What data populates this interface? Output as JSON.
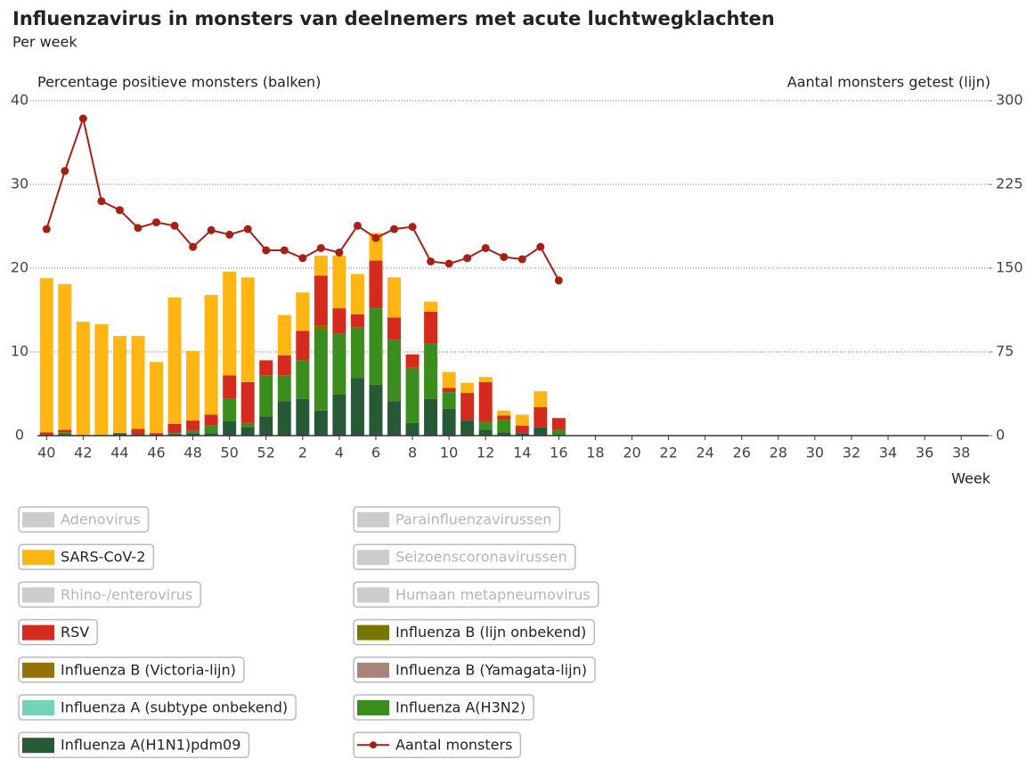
{
  "chart_data": {
    "type": "bar",
    "title": "Influenzavirus in monsters van deelnemers met acute luchtwegklachten",
    "subtitle": "Per week",
    "y_label": "Percentage positieve monsters (balken)",
    "y2_label": "Aantal monsters getest (lijn)",
    "x_label": "Week",
    "stacked": true,
    "grid": true,
    "ylim": [
      0,
      40
    ],
    "yticks": [
      0,
      10,
      20,
      30,
      40
    ],
    "y2lim": [
      0,
      300
    ],
    "y2ticks": [
      0,
      75,
      150,
      225,
      300
    ],
    "categories": [
      40,
      null,
      42,
      null,
      44,
      null,
      46,
      null,
      48,
      null,
      50,
      null,
      52,
      null,
      2,
      null,
      4,
      null,
      6,
      null,
      8,
      null,
      10,
      null,
      12,
      null,
      14,
      null,
      16,
      null,
      18,
      null,
      20,
      null,
      22,
      null,
      24,
      null,
      26,
      null,
      28,
      null,
      30,
      null,
      32,
      null,
      34,
      null,
      36,
      null,
      38,
      null
    ],
    "series": [
      {
        "name": "Influenza A(H1N1)pdm09",
        "color": "#275937",
        "values": [
          0,
          0.2,
          0,
          0,
          0.3,
          0.2,
          0,
          0.2,
          0.3,
          0.3,
          1.7,
          1.0,
          2.3,
          4.1,
          4.4,
          3.0,
          4.9,
          6.9,
          6.1,
          4.1,
          1.5,
          4.4,
          3.2,
          1.8,
          0.7,
          0.4,
          0.3,
          1.0,
          0,
          null,
          null,
          null,
          null,
          null,
          null,
          null,
          null,
          null,
          null,
          null,
          null,
          null,
          null,
          null,
          null,
          null,
          null,
          null,
          null,
          null,
          null,
          null
        ]
      },
      {
        "name": "Influenza A (subtype onbekend)",
        "color": "#76d2b6",
        "values": [
          0,
          0,
          0,
          0,
          0,
          0,
          0,
          0,
          0,
          0,
          0,
          0,
          0,
          0,
          0,
          0,
          0,
          0,
          0,
          0,
          0,
          0,
          0,
          0,
          0,
          0,
          0,
          0,
          0,
          null,
          null,
          null,
          null,
          null,
          null,
          null,
          null,
          null,
          null,
          null,
          null,
          null,
          null,
          null,
          null,
          null,
          null,
          null,
          null,
          null,
          null,
          null
        ]
      },
      {
        "name": "Influenza A(H3N2)",
        "color": "#3b8e1e",
        "values": [
          0,
          0.2,
          0,
          0,
          0,
          0,
          0,
          0.1,
          0.3,
          0.9,
          2.7,
          0.5,
          4.9,
          3.1,
          4.6,
          9.5,
          7.3,
          6.0,
          9.1,
          7.3,
          6.6,
          6.6,
          2.0,
          0,
          1.0,
          1.5,
          0,
          0,
          0.7,
          null,
          null,
          null,
          null,
          null,
          null,
          null,
          null,
          null,
          null,
          null,
          null,
          null,
          null,
          null,
          null,
          null,
          null,
          null,
          null,
          null,
          null,
          null
        ]
      },
      {
        "name": "Influenza B (Victoria-lijn)",
        "color": "#94710a",
        "values": [
          0,
          0,
          0,
          0,
          0,
          0,
          0,
          0,
          0,
          0,
          0,
          0,
          0,
          0,
          0,
          0,
          0,
          0,
          0,
          0,
          0,
          0,
          0,
          0,
          0,
          0,
          0,
          0,
          0,
          null,
          null,
          null,
          null,
          null,
          null,
          null,
          null,
          null,
          null,
          null,
          null,
          null,
          null,
          null,
          null,
          null,
          null,
          null,
          null,
          null,
          null,
          null
        ]
      },
      {
        "name": "Influenza B (Yamagata-lijn)",
        "color": "#a8847a",
        "values": [
          0,
          0,
          0,
          0,
          0,
          0,
          0,
          0,
          0,
          0,
          0,
          0,
          0,
          0,
          0,
          0,
          0,
          0,
          0,
          0,
          0,
          0,
          0,
          0,
          0,
          0,
          0,
          0,
          0,
          null,
          null,
          null,
          null,
          null,
          null,
          null,
          null,
          null,
          null,
          null,
          null,
          null,
          null,
          null,
          null,
          null,
          null,
          null,
          null,
          null,
          null,
          null
        ]
      },
      {
        "name": "Influenza B (lijn onbekend)",
        "color": "#777700",
        "values": [
          0,
          0,
          0,
          0,
          0,
          0,
          0,
          0,
          0,
          0,
          0,
          0,
          0,
          0,
          0,
          0.6,
          0,
          0,
          0,
          0,
          0,
          0,
          0,
          0,
          0,
          0,
          0,
          0,
          0,
          null,
          null,
          null,
          null,
          null,
          null,
          null,
          null,
          null,
          null,
          null,
          null,
          null,
          null,
          null,
          null,
          null,
          null,
          null,
          null,
          null,
          null,
          null
        ]
      },
      {
        "name": "RSV",
        "color": "#d52b1e",
        "values": [
          0.4,
          0.3,
          0,
          0,
          0,
          0.6,
          0.3,
          1.1,
          1.2,
          1.3,
          2.8,
          4.9,
          1.8,
          2.4,
          3.5,
          6.0,
          3.0,
          1.6,
          5.7,
          2.7,
          1.6,
          3.8,
          0.5,
          3.3,
          4.7,
          0.5,
          0.9,
          2.4,
          1.4,
          null,
          null,
          null,
          null,
          null,
          null,
          null,
          null,
          null,
          null,
          null,
          null,
          null,
          null,
          null,
          null,
          null,
          null,
          null,
          null,
          null,
          null,
          null
        ]
      },
      {
        "name": "Humaan metapneumovirus",
        "color": "#cccccc",
        "hidden": true,
        "values": [
          null,
          null,
          null,
          null,
          null,
          null,
          null,
          null,
          null,
          null,
          null,
          null,
          null,
          null,
          null,
          null,
          null,
          null,
          null,
          null,
          null,
          null,
          null,
          null,
          null,
          null,
          null,
          null,
          null,
          null,
          null,
          null,
          null,
          null,
          null,
          null,
          null,
          null,
          null,
          null,
          null,
          null,
          null,
          null,
          null,
          null,
          null,
          null,
          null,
          null,
          null,
          null
        ]
      },
      {
        "name": "Rhino-/enterovirus",
        "color": "#cccccc",
        "hidden": true,
        "values": [
          null,
          null,
          null,
          null,
          null,
          null,
          null,
          null,
          null,
          null,
          null,
          null,
          null,
          null,
          null,
          null,
          null,
          null,
          null,
          null,
          null,
          null,
          null,
          null,
          null,
          null,
          null,
          null,
          null,
          null,
          null,
          null,
          null,
          null,
          null,
          null,
          null,
          null,
          null,
          null,
          null,
          null,
          null,
          null,
          null,
          null,
          null,
          null,
          null,
          null,
          null,
          null
        ]
      },
      {
        "name": "Seizoenscoronavirussen",
        "color": "#cccccc",
        "hidden": true,
        "values": [
          null,
          null,
          null,
          null,
          null,
          null,
          null,
          null,
          null,
          null,
          null,
          null,
          null,
          null,
          null,
          null,
          null,
          null,
          null,
          null,
          null,
          null,
          null,
          null,
          null,
          null,
          null,
          null,
          null,
          null,
          null,
          null,
          null,
          null,
          null,
          null,
          null,
          null,
          null,
          null,
          null,
          null,
          null,
          null,
          null,
          null,
          null,
          null,
          null,
          null,
          null,
          null
        ]
      },
      {
        "name": "Parainfluenzavirussen",
        "color": "#cccccc",
        "hidden": true,
        "values": [
          null,
          null,
          null,
          null,
          null,
          null,
          null,
          null,
          null,
          null,
          null,
          null,
          null,
          null,
          null,
          null,
          null,
          null,
          null,
          null,
          null,
          null,
          null,
          null,
          null,
          null,
          null,
          null,
          null,
          null,
          null,
          null,
          null,
          null,
          null,
          null,
          null,
          null,
          null,
          null,
          null,
          null,
          null,
          null,
          null,
          null,
          null,
          null,
          null,
          null,
          null,
          null
        ]
      },
      {
        "name": "SARS-CoV-2",
        "color": "#ffb612",
        "values": [
          18.4,
          17.4,
          13.6,
          13.3,
          11.6,
          11.1,
          8.5,
          15.1,
          8.3,
          14.3,
          12.4,
          12.5,
          0,
          4.8,
          4.6,
          2.4,
          6.3,
          4.8,
          3.3,
          4.8,
          0,
          1.2,
          1.9,
          1.2,
          0.6,
          0.6,
          1.3,
          1.9,
          0,
          null,
          null,
          null,
          null,
          null,
          null,
          null,
          null,
          null,
          null,
          null,
          null,
          null,
          null,
          null,
          null,
          null,
          null,
          null,
          null,
          null,
          null,
          null
        ]
      },
      {
        "name": "Adenovirus",
        "color": "#cccccc",
        "hidden": true,
        "values": [
          null,
          null,
          null,
          null,
          null,
          null,
          null,
          null,
          null,
          null,
          null,
          null,
          null,
          null,
          null,
          null,
          null,
          null,
          null,
          null,
          null,
          null,
          null,
          null,
          null,
          null,
          null,
          null,
          null,
          null,
          null,
          null,
          null,
          null,
          null,
          null,
          null,
          null,
          null,
          null,
          null,
          null,
          null,
          null,
          null,
          null,
          null,
          null,
          null,
          null,
          null,
          null
        ]
      },
      {
        "name": "Aantal monsters",
        "color": "#a81f16",
        "kind": "line",
        "axis": "y2",
        "values": [
          185,
          237,
          284,
          210,
          202,
          186,
          191,
          188,
          169,
          184,
          180,
          185,
          166,
          166,
          159,
          168,
          164,
          188,
          177,
          185,
          187,
          156,
          154,
          159,
          168,
          160,
          158,
          169,
          139,
          null,
          null,
          null,
          null,
          null,
          null,
          null,
          null,
          null,
          null,
          null,
          null,
          null,
          null,
          null,
          null,
          null,
          null,
          null,
          null,
          null,
          null,
          null
        ]
      }
    ]
  }
}
